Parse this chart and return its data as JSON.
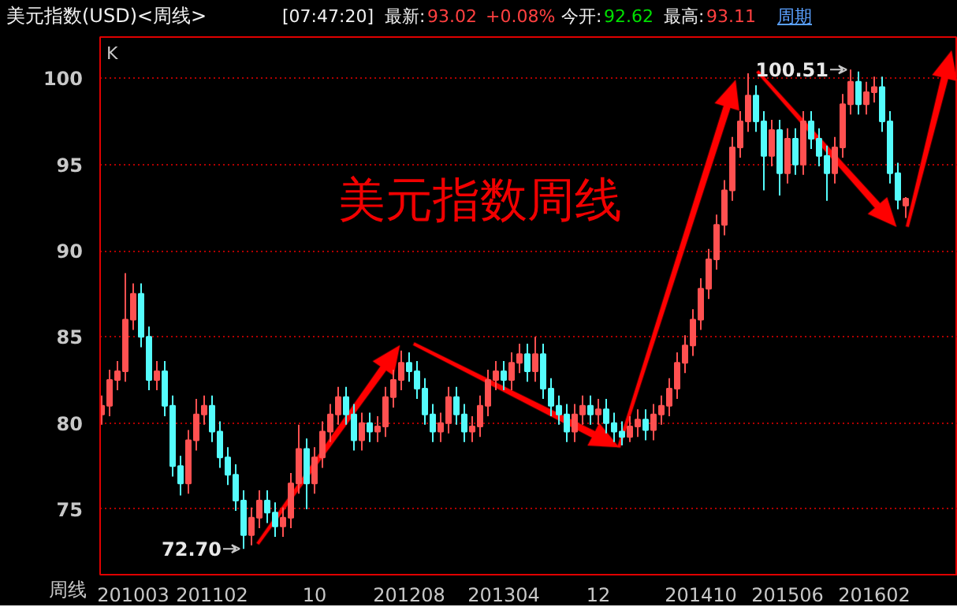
{
  "chart_data": {
    "type": "candlestick",
    "title": "美元指数(USD)<周线>",
    "annotations": [
      "[07:47:20]",
      "最新:",
      "93.02",
      "+0.08%",
      "今开:",
      "92.62",
      "最高:",
      "93.11",
      "周期",
      "K",
      "周线",
      "美元指数周线",
      "72.70",
      "100.51"
    ],
    "categories": [
      null,
      null,
      null,
      null,
      "201003",
      null,
      null,
      null,
      null,
      null,
      null,
      null,
      null,
      null,
      "201102",
      null,
      null,
      null,
      null,
      null,
      null,
      null,
      null,
      null,
      null,
      null,
      null,
      "10",
      null,
      null,
      null,
      null,
      null,
      null,
      null,
      null,
      null,
      null,
      null,
      "201208",
      null,
      null,
      null,
      null,
      null,
      null,
      null,
      null,
      null,
      null,
      null,
      "201304",
      null,
      null,
      null,
      null,
      null,
      null,
      null,
      null,
      null,
      null,
      null,
      "12",
      null,
      null,
      null,
      null,
      null,
      null,
      null,
      null,
      null,
      null,
      null,
      null,
      "201410",
      null,
      null,
      null,
      null,
      null,
      null,
      null,
      null,
      null,
      null,
      "201506",
      null,
      null,
      null,
      null,
      null,
      null,
      null,
      null,
      null,
      null,
      "201602",
      null,
      null,
      null,
      null
    ],
    "ohlc": [
      [
        80.5,
        81.6,
        79.9,
        81
      ],
      [
        81,
        83.1,
        80.4,
        82.5
      ],
      [
        82.5,
        83.6,
        81.9,
        83
      ],
      [
        83,
        88.7,
        82.4,
        86
      ],
      [
        86,
        88.1,
        85.4,
        87.5
      ],
      [
        87.5,
        88.1,
        84.4,
        85
      ],
      [
        85,
        85.6,
        81.9,
        82.5
      ],
      [
        82.5,
        83.6,
        81.9,
        83
      ],
      [
        83,
        83.6,
        80.4,
        81
      ],
      [
        81,
        81.6,
        76.9,
        77.5
      ],
      [
        77.5,
        78.1,
        75.8,
        76.5
      ],
      [
        76.5,
        79.6,
        75.9,
        79
      ],
      [
        79,
        81.4,
        78.4,
        80.5
      ],
      [
        80.5,
        81.6,
        79.9,
        81
      ],
      [
        81,
        81.6,
        78.9,
        79.5
      ],
      [
        79.5,
        80.1,
        77.4,
        78
      ],
      [
        78,
        78.6,
        76.4,
        77
      ],
      [
        77,
        77.6,
        74.9,
        75.5
      ],
      [
        75.5,
        76.1,
        72.7,
        73.5
      ],
      [
        73.5,
        75.1,
        72.9,
        74.5
      ],
      [
        74.5,
        76.1,
        73.9,
        75.5
      ],
      [
        75.5,
        76.1,
        74.2,
        74.8
      ],
      [
        74.8,
        75.4,
        73.4,
        74
      ],
      [
        74,
        75.1,
        73.4,
        74.5
      ],
      [
        74.5,
        77.1,
        73.9,
        76.5
      ],
      [
        76.5,
        79.9,
        75.9,
        78.5
      ],
      [
        78.5,
        79.1,
        75,
        76.5
      ],
      [
        76.5,
        78.6,
        75.9,
        78
      ],
      [
        78,
        80.1,
        77.4,
        79.5
      ],
      [
        79.5,
        81.1,
        78.9,
        80.5
      ],
      [
        80.5,
        82.1,
        79.9,
        81.5
      ],
      [
        81.5,
        82.1,
        79.9,
        80.5
      ],
      [
        80.5,
        81.1,
        78.4,
        79
      ],
      [
        79,
        80.6,
        78.4,
        80
      ],
      [
        80,
        80.6,
        78.9,
        79.5
      ],
      [
        79.5,
        80.4,
        78.9,
        79.8
      ],
      [
        79.8,
        82.1,
        79.2,
        81.5
      ],
      [
        81.5,
        83.1,
        80.9,
        82.5
      ],
      [
        82.5,
        84.2,
        81.9,
        83.5
      ],
      [
        83.5,
        84.1,
        82.4,
        83
      ],
      [
        83,
        83.6,
        81.4,
        82
      ],
      [
        82,
        82.6,
        79.9,
        80.5
      ],
      [
        80.5,
        81.1,
        78.9,
        79.5
      ],
      [
        79.5,
        80.6,
        78.9,
        80
      ],
      [
        80,
        82.1,
        79.4,
        81.5
      ],
      [
        81.5,
        82.1,
        79.9,
        80.5
      ],
      [
        80.5,
        81.1,
        78.9,
        79.5
      ],
      [
        79.5,
        80.4,
        78.9,
        79.8
      ],
      [
        79.8,
        81.6,
        79.2,
        81
      ],
      [
        81,
        83.1,
        80.4,
        82.5
      ],
      [
        82.5,
        83.6,
        81.9,
        83
      ],
      [
        83,
        83.6,
        81.9,
        82.5
      ],
      [
        82.5,
        84.1,
        81.9,
        83.5
      ],
      [
        83.5,
        84.6,
        82.9,
        84
      ],
      [
        84,
        84.6,
        82.4,
        83
      ],
      [
        83,
        85,
        82.4,
        84
      ],
      [
        84,
        84.6,
        81.4,
        82
      ],
      [
        82,
        82.6,
        80.4,
        81
      ],
      [
        81,
        81.6,
        79.9,
        80.5
      ],
      [
        80.5,
        81.1,
        78.9,
        79.5
      ],
      [
        79.5,
        81.1,
        78.9,
        80.5
      ],
      [
        80.5,
        81.6,
        79.9,
        81
      ],
      [
        81,
        81.6,
        79.9,
        80.5
      ],
      [
        80.5,
        81.4,
        79.9,
        80.8
      ],
      [
        80.8,
        81.4,
        79.4,
        80
      ],
      [
        80,
        80.6,
        78.9,
        79.5
      ],
      [
        79.5,
        80.1,
        78.7,
        79.2
      ],
      [
        79.2,
        80.4,
        78.9,
        79.8
      ],
      [
        79.8,
        80.8,
        79.2,
        80.2
      ],
      [
        80.2,
        80.8,
        79,
        79.6
      ],
      [
        79.6,
        81.1,
        79,
        80.5
      ],
      [
        80.5,
        81.6,
        79.9,
        81
      ],
      [
        81,
        82.6,
        80.4,
        82
      ],
      [
        82,
        84.1,
        81.4,
        83.5
      ],
      [
        83.5,
        85.1,
        82.9,
        84.5
      ],
      [
        84.5,
        86.6,
        83.9,
        86
      ],
      [
        86,
        88.4,
        85.4,
        87.8
      ],
      [
        87.8,
        90.1,
        87.2,
        89.5
      ],
      [
        89.5,
        92.1,
        88.9,
        91.5
      ],
      [
        91.5,
        94.1,
        90.9,
        93.5
      ],
      [
        93.5,
        96.6,
        92.9,
        96
      ],
      [
        96,
        98.1,
        95.4,
        97.5
      ],
      [
        97.5,
        100.3,
        96.9,
        99
      ],
      [
        99,
        99.6,
        96.9,
        97.5
      ],
      [
        97.5,
        98.1,
        93.5,
        95.5
      ],
      [
        95.5,
        97.6,
        94.9,
        97
      ],
      [
        97,
        97.6,
        93.2,
        94.5
      ],
      [
        94.5,
        97.1,
        93.9,
        96.5
      ],
      [
        96.5,
        97.1,
        94.4,
        95
      ],
      [
        95,
        98.1,
        94.4,
        97.5
      ],
      [
        97.5,
        98.1,
        95.9,
        96.5
      ],
      [
        96.5,
        97.1,
        94.9,
        95.5
      ],
      [
        95.5,
        96.1,
        92.9,
        94.5
      ],
      [
        94.5,
        96.6,
        93.9,
        96
      ],
      [
        96,
        99.1,
        95.4,
        98.5
      ],
      [
        98.5,
        100.51,
        97.9,
        99.8
      ],
      [
        99.8,
        100.4,
        97.9,
        98.5
      ],
      [
        98.5,
        99.8,
        97.9,
        99.2
      ],
      [
        99.2,
        100.1,
        98.6,
        99.5
      ],
      [
        99.5,
        100.1,
        96.9,
        97.5
      ],
      [
        97.5,
        98.1,
        93.9,
        94.5
      ],
      [
        94.5,
        95.1,
        92.4,
        92.95
      ],
      [
        92.62,
        93.11,
        91.9,
        93.02
      ]
    ],
    "colors": [
      "#ff5050",
      "#ff5050",
      "#ff5050",
      "#ff5050",
      "#ff5050",
      "#54fcfc",
      "#54fcfc",
      "#ff5050",
      "#54fcfc",
      "#54fcfc",
      "#54fcfc",
      "#ff5050",
      "#ff5050",
      "#ff5050",
      "#54fcfc",
      "#54fcfc",
      "#54fcfc",
      "#54fcfc",
      "#54fcfc",
      "#ff5050",
      "#ff5050",
      "#54fcfc",
      "#54fcfc",
      "#ff5050",
      "#ff5050",
      "#ff5050",
      "#54fcfc",
      "#ff5050",
      "#ff5050",
      "#ff5050",
      "#ff5050",
      "#54fcfc",
      "#54fcfc",
      "#ff5050",
      "#54fcfc",
      "#ff5050",
      "#ff5050",
      "#ff5050",
      "#ff5050",
      "#54fcfc",
      "#54fcfc",
      "#54fcfc",
      "#54fcfc",
      "#ff5050",
      "#ff5050",
      "#54fcfc",
      "#54fcfc",
      "#ff5050",
      "#ff5050",
      "#ff5050",
      "#ff5050",
      "#54fcfc",
      "#ff5050",
      "#ff5050",
      "#54fcfc",
      "#ff5050",
      "#54fcfc",
      "#54fcfc",
      "#54fcfc",
      "#54fcfc",
      "#ff5050",
      "#ff5050",
      "#54fcfc",
      "#ff5050",
      "#54fcfc",
      "#54fcfc",
      "#54fcfc",
      "#ff5050",
      "#ff5050",
      "#54fcfc",
      "#ff5050",
      "#ff5050",
      "#ff5050",
      "#ff5050",
      "#ff5050",
      "#ff5050",
      "#ff5050",
      "#ff5050",
      "#ff5050",
      "#ff5050",
      "#ff5050",
      "#ff5050",
      "#ff5050",
      "#54fcfc",
      "#54fcfc",
      "#ff5050",
      "#54fcfc",
      "#ff5050",
      "#54fcfc",
      "#ff5050",
      "#54fcfc",
      "#54fcfc",
      "#54fcfc",
      "#ff5050",
      "#ff5050",
      "#ff5050",
      "#54fcfc",
      "#ff5050",
      "#ff5050",
      "#54fcfc",
      "#54fcfc",
      "#54fcfc",
      "#ff5050"
    ],
    "ylim": [
      71.2,
      102.4
    ],
    "yticks": [
      75,
      80,
      85,
      90,
      95,
      100
    ],
    "grid": "y"
  }
}
